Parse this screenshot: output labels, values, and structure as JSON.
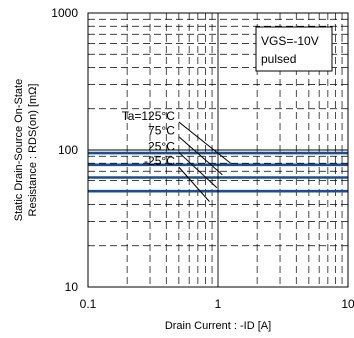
{
  "chart_data": {
    "type": "line",
    "xlabel": "Drain Current : -ID [A]",
    "ylabel_lines": [
      "Static Drain-Source On-State",
      "Resistance : RDS(on) [mΩ]"
    ],
    "x_scale": "log",
    "y_scale": "log",
    "xlim": [
      0.1,
      10
    ],
    "ylim": [
      10,
      1000
    ],
    "x_ticks": [
      {
        "value": 0.1,
        "label": "0.1"
      },
      {
        "value": 1,
        "label": "1"
      },
      {
        "value": 10,
        "label": "10"
      }
    ],
    "y_ticks": [
      {
        "value": 10,
        "label": "10"
      },
      {
        "value": 100,
        "label": "100"
      },
      {
        "value": 1000,
        "label": "1000"
      }
    ],
    "grid": "dashed",
    "line_color": "#1f4e8c",
    "conditions": [
      "VGS=-10V",
      "pulsed"
    ],
    "series": [
      {
        "name": "Ta=125°C",
        "x": [
          0.1,
          10
        ],
        "y": [
          95,
          95
        ]
      },
      {
        "name": "75°C",
        "x": [
          0.1,
          10
        ],
        "y": [
          78,
          78
        ]
      },
      {
        "name": "25°C",
        "x": [
          0.1,
          10
        ],
        "y": [
          63,
          63
        ]
      },
      {
        "name": "-25°C",
        "x": [
          0.1,
          10
        ],
        "y": [
          50,
          50
        ]
      }
    ],
    "callout_slashes": [
      {
        "x": [
          0.5,
          1.25
        ],
        "y": [
          160,
          80
        ]
      },
      {
        "x": [
          0.5,
          1.08
        ],
        "y": [
          125,
          66
        ]
      },
      {
        "x": [
          0.5,
          0.98
        ],
        "y": [
          96,
          53
        ]
      },
      {
        "x": [
          0.5,
          0.86
        ],
        "y": [
          75,
          42
        ]
      }
    ]
  }
}
